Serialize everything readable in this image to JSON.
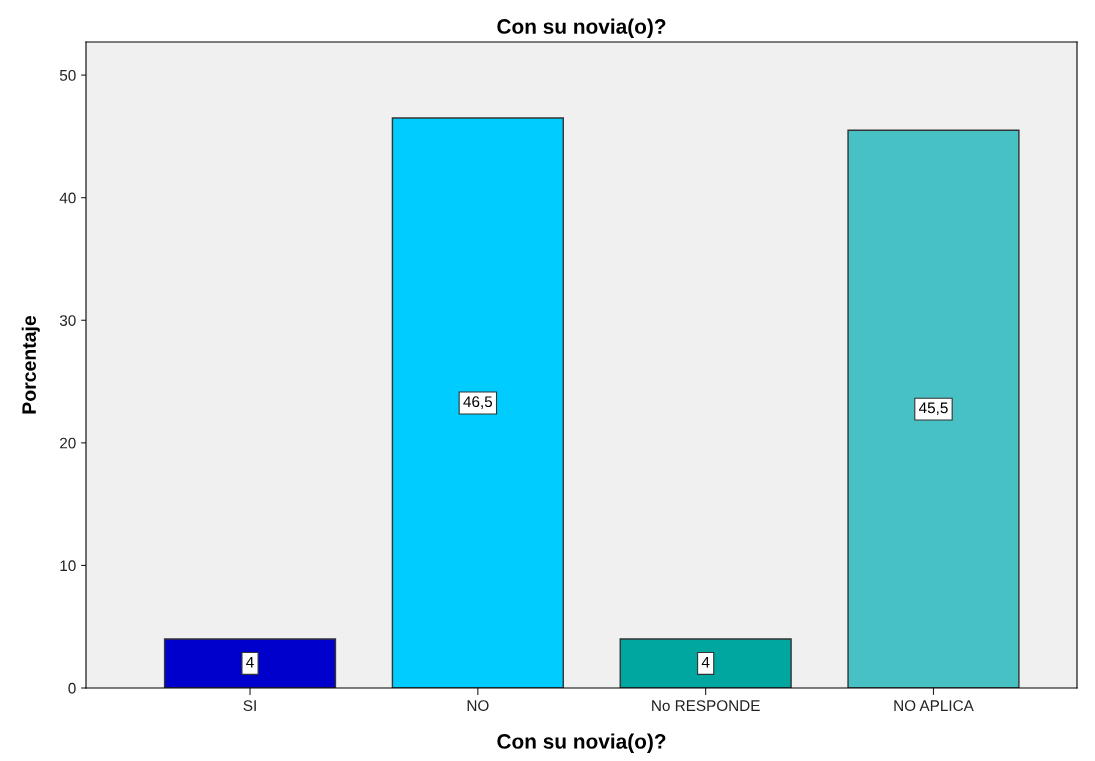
{
  "chart_data": {
    "type": "bar",
    "title": "Con su novia(o)?",
    "xlabel": "Con su novia(o)?",
    "ylabel": "Porcentaje",
    "categories": [
      "SI",
      "NO",
      "No RESPONDE",
      "NO APLICA"
    ],
    "values": [
      4,
      46.5,
      4,
      45.5
    ],
    "value_labels": [
      "4",
      "46,5",
      "4",
      "45,5"
    ],
    "colors": [
      "#0000cc",
      "#00ccff",
      "#00a6a0",
      "#48c1c4"
    ],
    "ylim": [
      0,
      52.7
    ],
    "yticks": [
      0,
      10,
      20,
      30,
      40,
      50
    ],
    "grid": false,
    "legend": false
  }
}
